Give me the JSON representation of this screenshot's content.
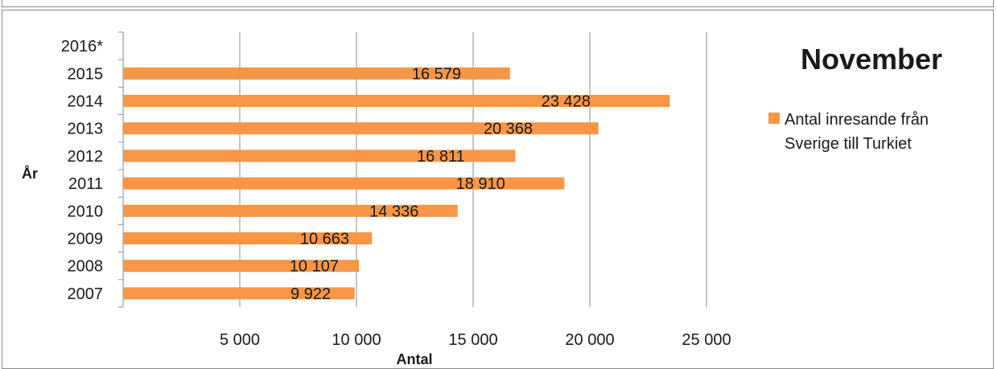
{
  "chart_data": {
    "type": "bar",
    "orientation": "horizontal",
    "title": "November",
    "xlabel": "Antal",
    "ylabel": "År",
    "categories": [
      "2016*",
      "2015",
      "2014",
      "2013",
      "2012",
      "2011",
      "2010",
      "2009",
      "2008",
      "2007"
    ],
    "series": [
      {
        "name": "Antal inresande från Sverige till Turkiet",
        "values": [
          null,
          16579,
          23428,
          20368,
          16811,
          18910,
          14336,
          10663,
          10107,
          9922
        ],
        "value_labels": [
          "",
          "16 579",
          "23 428",
          "20 368",
          "16 811",
          "18 910",
          "14 336",
          "10 663",
          "10 107",
          "9 922"
        ],
        "color": "#F79646"
      }
    ],
    "xlim": [
      0,
      25000
    ],
    "x_ticks": [
      5000,
      10000,
      15000,
      20000,
      25000
    ],
    "x_tick_labels": [
      "5 000",
      "10 000",
      "15 000",
      "20 000",
      "25 000"
    ],
    "grid": "vertical",
    "legend": "right"
  },
  "colors": {
    "bar": "#F79646",
    "gridline": "#8a8a8a",
    "text": "#1a1a1a"
  }
}
